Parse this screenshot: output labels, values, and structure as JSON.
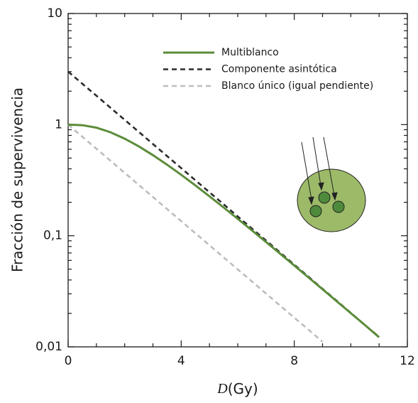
{
  "chart_data": {
    "type": "line",
    "ylabel": "Fracción de supervivencia",
    "xlabel": {
      "symbol": "D",
      "unit": "(Gy)"
    },
    "x": [
      0,
      0.5,
      1,
      1.5,
      2,
      2.5,
      3,
      3.5,
      4,
      4.5,
      5,
      5.5,
      6,
      6.5,
      7,
      7.5,
      8,
      8.5,
      9,
      9.5,
      10,
      10.5,
      11
    ],
    "series": [
      {
        "name": "Multiblanco",
        "color": "#5b8c3a",
        "dash": "none",
        "values": [
          1,
          0.9892,
          0.9391,
          0.8531,
          0.7474,
          0.6368,
          0.5311,
          0.436,
          0.3535,
          0.284,
          0.2266,
          0.1797,
          0.142,
          0.1119,
          0.0879,
          0.0689,
          0.0539,
          0.0422,
          0.033,
          0.0257,
          0.0201,
          0.0157,
          0.0122
        ]
      },
      {
        "name": "Componente asintótica",
        "color": "#2b2b2b",
        "dash": "7 5",
        "values": [
          3,
          2.336,
          1.82,
          1.417,
          1.104,
          0.86,
          0.669,
          0.521,
          0.406,
          0.316,
          0.246,
          0.192,
          0.149,
          0.116,
          0.0906,
          0.0706,
          0.0549,
          0.0428,
          0.0333,
          0.026,
          0.0202,
          0.0157,
          0.0123
        ]
      },
      {
        "name": "Blanco único (igual pendiente)",
        "color": "#bdbdbd",
        "dash": "7 5",
        "values": [
          1,
          0.7788,
          0.6065,
          0.4724,
          0.3679,
          0.2865,
          0.2231,
          0.1738,
          0.1353,
          0.1054,
          0.0821,
          0.0639,
          0.0498,
          0.0388,
          0.0302,
          0.0235,
          0.0183,
          0.0143,
          0.0111,
          null,
          null,
          null,
          null
        ]
      }
    ],
    "xlim": [
      0,
      12
    ],
    "xticks": [
      0,
      4,
      8,
      12
    ],
    "xminorticks": [
      1,
      2,
      3,
      5,
      6,
      7,
      9,
      10,
      11
    ],
    "ylim": [
      0.01,
      10
    ],
    "ylog": true,
    "yticks": [
      {
        "value": 0.01,
        "label": "0,01"
      },
      {
        "value": 0.1,
        "label": "0,1"
      },
      1,
      10
    ],
    "yminorticks": [
      0.02,
      0.03,
      0.04,
      0.05,
      0.06,
      0.07,
      0.08,
      0.09,
      0.2,
      0.3,
      0.4,
      0.5,
      0.6,
      0.7,
      0.8,
      0.9,
      2,
      3,
      4,
      5,
      6,
      7,
      8,
      9
    ],
    "legend": "top"
  }
}
